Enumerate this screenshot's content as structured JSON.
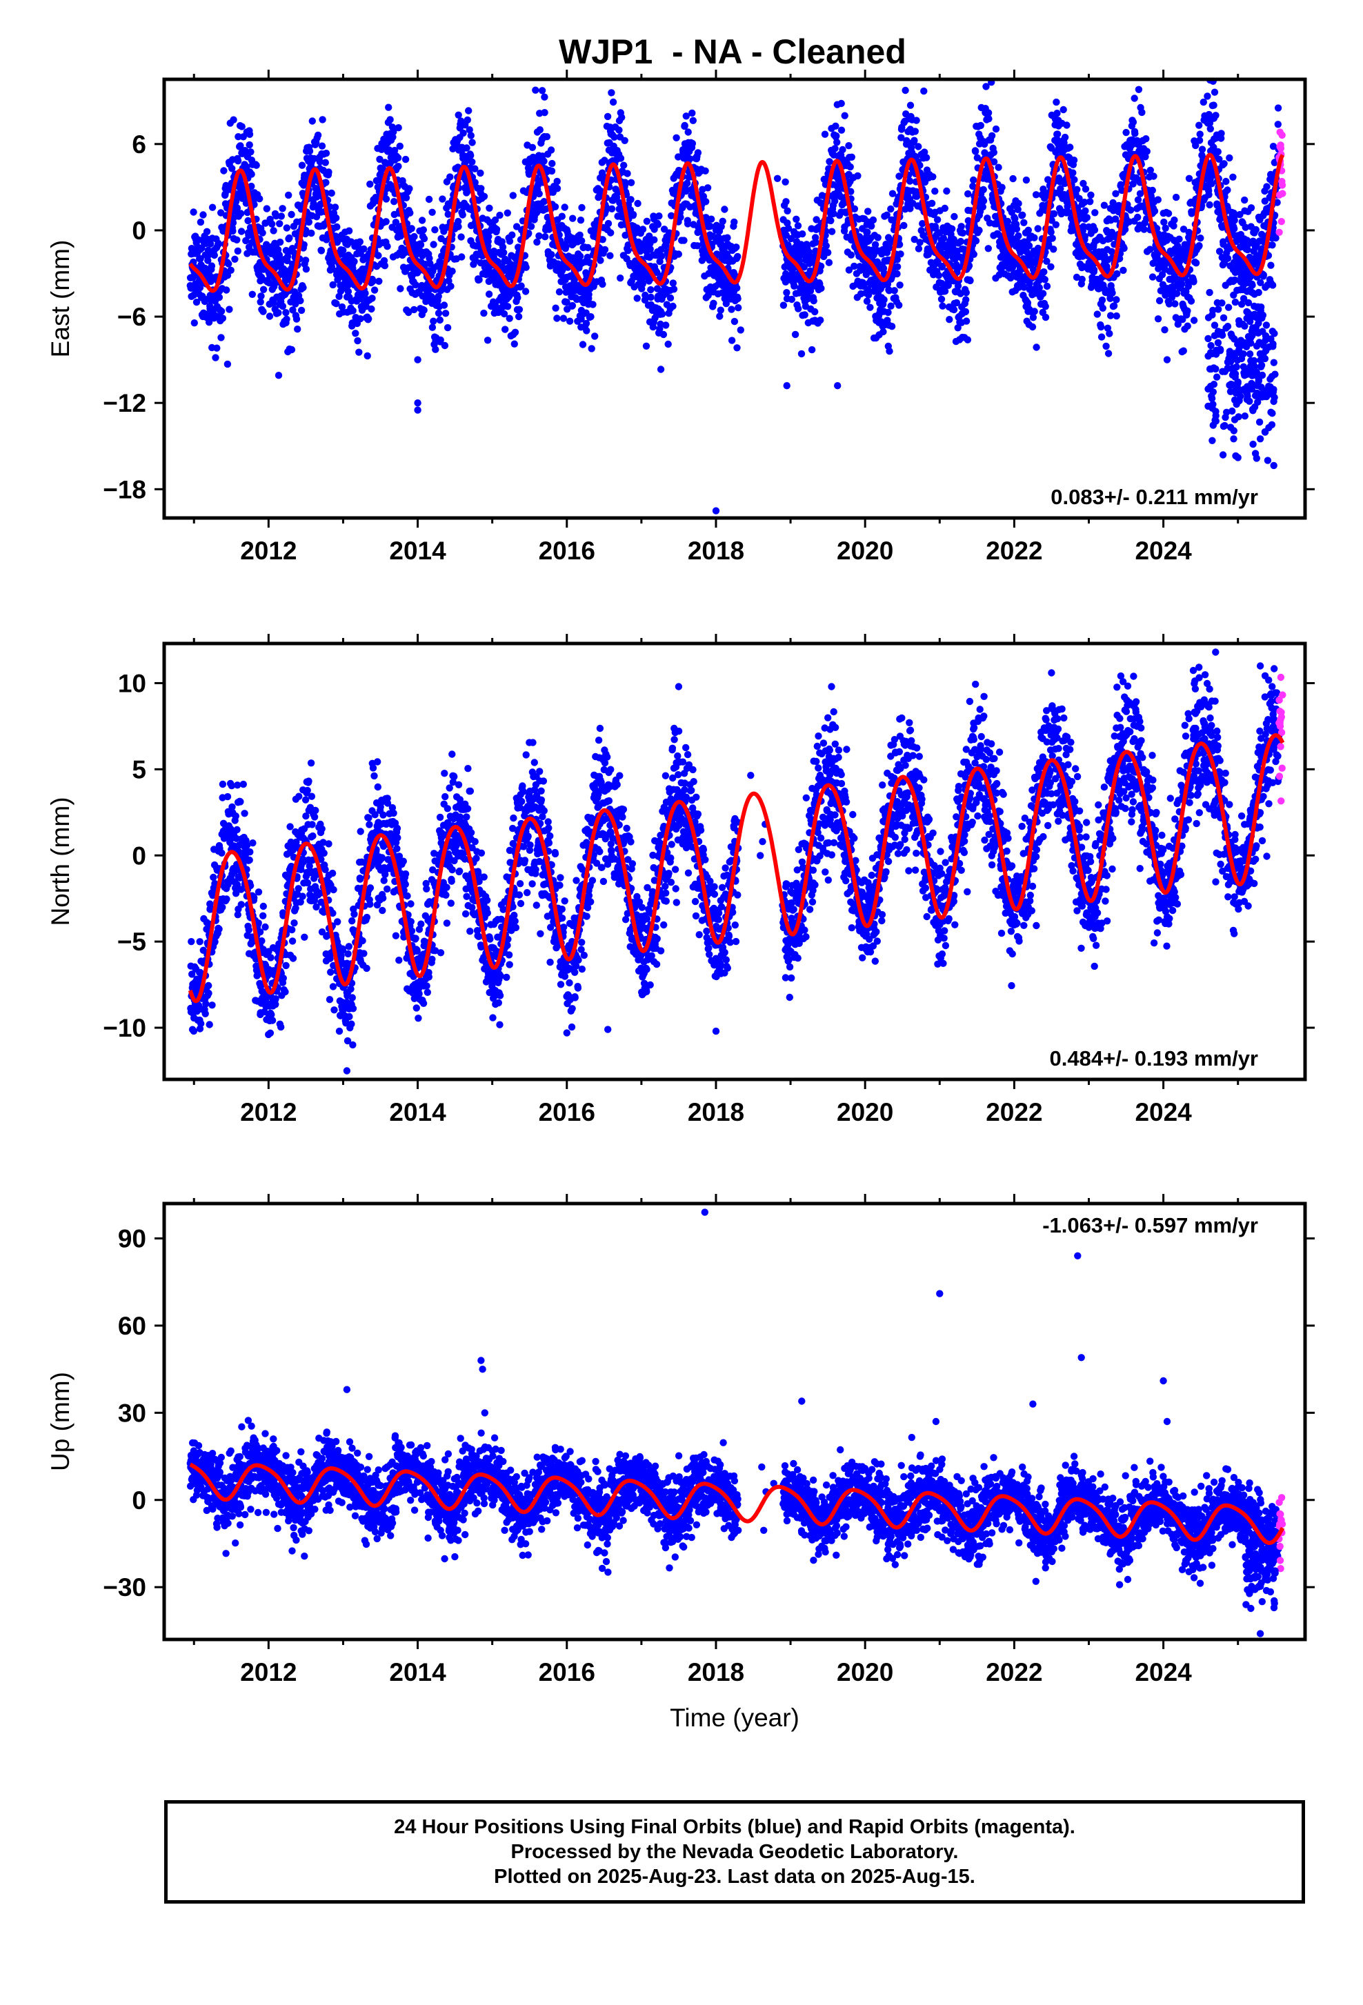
{
  "title": "WJP1  - NA - Cleaned",
  "colors": {
    "final_orbits": "#0000ff",
    "rapid_orbits": "#ff33ff",
    "model_fit": "#ff0000",
    "axes": "#000000"
  },
  "footer": {
    "line1": "24 Hour Positions Using Final Orbits (blue) and Rapid Orbits (magenta).",
    "line2": "Processed by the Nevada Geodetic Laboratory.",
    "line3": "Plotted on 2025-Aug-23. Last data on 2025-Aug-15."
  },
  "chart_data": [
    {
      "type": "scatter",
      "id": "east",
      "ylabel": "East (mm)",
      "xlabel": "",
      "xlim": [
        2010.6,
        2025.9
      ],
      "ylim": [
        -20,
        10.5
      ],
      "xticks": [
        2012,
        2014,
        2016,
        2018,
        2020,
        2022,
        2024
      ],
      "yticks": [
        -18,
        -12,
        -6,
        0,
        6
      ],
      "ytick_labels": [
        "−18",
        "−12",
        "−6",
        "0",
        "6"
      ],
      "rate_label": "0.083+/- 0.211 mm/yr",
      "rate_position": "bottom-right",
      "model": {
        "start_year": 2010.95,
        "end_year": 2025.6,
        "offset": -0.2,
        "trend": 0.083,
        "trend_ref": 2018.0,
        "annual_amp": 3.8,
        "annual_peak": 0.65,
        "semiannual_amp": 1.2,
        "semiannual_peak": 0.1,
        "noise": 1.6,
        "gaps": [
          [
            2018.3,
            2018.9
          ]
        ],
        "rapid_from": 2025.55,
        "seed": 11
      },
      "outliers": [
        [
          2011.45,
          -9.3
        ],
        [
          2014.0,
          -9.0
        ],
        [
          2014.0,
          -12.5
        ],
        [
          2014.0,
          -12.0
        ],
        [
          2018.0,
          -19.5
        ],
        [
          2018.95,
          -10.8
        ],
        [
          2019.63,
          -10.8
        ],
        [
          2024.05,
          -9.0
        ],
        [
          2025.0,
          -15.8
        ],
        [
          2025.4,
          -16.0
        ],
        [
          2025.3,
          -14.5
        ]
      ],
      "extra_clusters": [
        {
          "x_from": 2024.6,
          "x_to": 2025.5,
          "y_mean": -9.5,
          "y_sd": 2.8,
          "count": 230
        }
      ]
    },
    {
      "type": "scatter",
      "id": "north",
      "ylabel": "North (mm)",
      "xlabel": "",
      "xlim": [
        2010.6,
        2025.9
      ],
      "ylim": [
        -13,
        12.3
      ],
      "xticks": [
        2012,
        2014,
        2016,
        2018,
        2020,
        2022,
        2024
      ],
      "yticks": [
        -10,
        -5,
        0,
        5,
        10
      ],
      "ytick_labels": [
        "−10",
        "−5",
        "0",
        "5",
        "10"
      ],
      "rate_label": "0.484+/- 0.193 mm/yr",
      "rate_position": "bottom-right",
      "model": {
        "start_year": 2010.95,
        "end_year": 2025.6,
        "offset": -0.5,
        "trend": 0.484,
        "trend_ref": 2018.0,
        "annual_amp": 4.2,
        "annual_peak": 0.52,
        "semiannual_amp": 0.4,
        "semiannual_peak": 0.3,
        "noise": 1.3,
        "gaps": [
          [
            2018.3,
            2018.9
          ]
        ],
        "rapid_from": 2025.55,
        "seed": 23
      },
      "outliers": [
        [
          2013.05,
          -12.5
        ],
        [
          2012.95,
          -10.2
        ],
        [
          2016.0,
          -10.3
        ],
        [
          2016.55,
          -10.1
        ],
        [
          2018.0,
          -10.2
        ],
        [
          2017.5,
          9.8
        ],
        [
          2019.55,
          9.8
        ],
        [
          2022.5,
          10.6
        ],
        [
          2023.6,
          10.4
        ],
        [
          2024.7,
          11.8
        ],
        [
          2025.3,
          11.0
        ]
      ],
      "extra_clusters": []
    },
    {
      "type": "scatter",
      "id": "up",
      "ylabel": "Up (mm)",
      "xlabel": "Time (year)",
      "xlim": [
        2010.6,
        2025.9
      ],
      "ylim": [
        -48,
        102
      ],
      "xticks": [
        2012,
        2014,
        2016,
        2018,
        2020,
        2022,
        2024
      ],
      "yticks": [
        -30,
        0,
        30,
        60,
        90
      ],
      "ytick_labels": [
        "−30",
        "0",
        "30",
        "60",
        "90"
      ],
      "rate_label": "-1.063+/- 0.597 mm/yr",
      "rate_position": "top-right",
      "model": {
        "start_year": 2010.95,
        "end_year": 2025.6,
        "offset": 0.0,
        "trend": -1.063,
        "trend_ref": 2018.0,
        "annual_amp": 6.0,
        "annual_peak": 0.9,
        "semiannual_amp": 1.0,
        "semiannual_peak": 0.2,
        "noise": 4.5,
        "gaps": [
          [
            2018.3,
            2018.9
          ]
        ],
        "rapid_from": 2025.55,
        "seed": 37
      },
      "outliers": [
        [
          2013.05,
          38
        ],
        [
          2014.85,
          48
        ],
        [
          2014.87,
          45
        ],
        [
          2014.9,
          30
        ],
        [
          2017.85,
          99
        ],
        [
          2019.15,
          34
        ],
        [
          2021.0,
          71
        ],
        [
          2020.95,
          27
        ],
        [
          2022.25,
          33
        ],
        [
          2022.85,
          84
        ],
        [
          2022.9,
          49
        ],
        [
          2024.0,
          41
        ],
        [
          2024.05,
          27
        ],
        [
          2025.3,
          -46
        ]
      ],
      "extra_clusters": [
        {
          "x_from": 2025.1,
          "x_to": 2025.5,
          "y_mean": -24,
          "y_sd": 6,
          "count": 80
        }
      ]
    }
  ]
}
